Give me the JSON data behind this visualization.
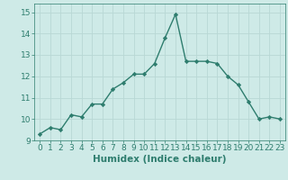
{
  "x": [
    0,
    1,
    2,
    3,
    4,
    5,
    6,
    7,
    8,
    9,
    10,
    11,
    12,
    13,
    14,
    15,
    16,
    17,
    18,
    19,
    20,
    21,
    22,
    23
  ],
  "y": [
    9.3,
    9.6,
    9.5,
    10.2,
    10.1,
    10.7,
    10.7,
    11.4,
    11.7,
    12.1,
    12.1,
    12.6,
    13.8,
    14.9,
    12.7,
    12.7,
    12.7,
    12.6,
    12.0,
    11.6,
    10.8,
    10.0,
    10.1,
    10.0
  ],
  "line_color": "#2e7d6e",
  "marker": "D",
  "marker_size": 2.2,
  "bg_color": "#ceeae7",
  "grid_color": "#b8d8d5",
  "xlabel": "Humidex (Indice chaleur)",
  "xlim": [
    -0.5,
    23.5
  ],
  "ylim": [
    9.0,
    15.4
  ],
  "yticks": [
    9,
    10,
    11,
    12,
    13,
    14,
    15
  ],
  "xticks": [
    0,
    1,
    2,
    3,
    4,
    5,
    6,
    7,
    8,
    9,
    10,
    11,
    12,
    13,
    14,
    15,
    16,
    17,
    18,
    19,
    20,
    21,
    22,
    23
  ],
  "tick_fontsize": 6.5,
  "xlabel_fontsize": 7.5,
  "line_width": 1.0
}
